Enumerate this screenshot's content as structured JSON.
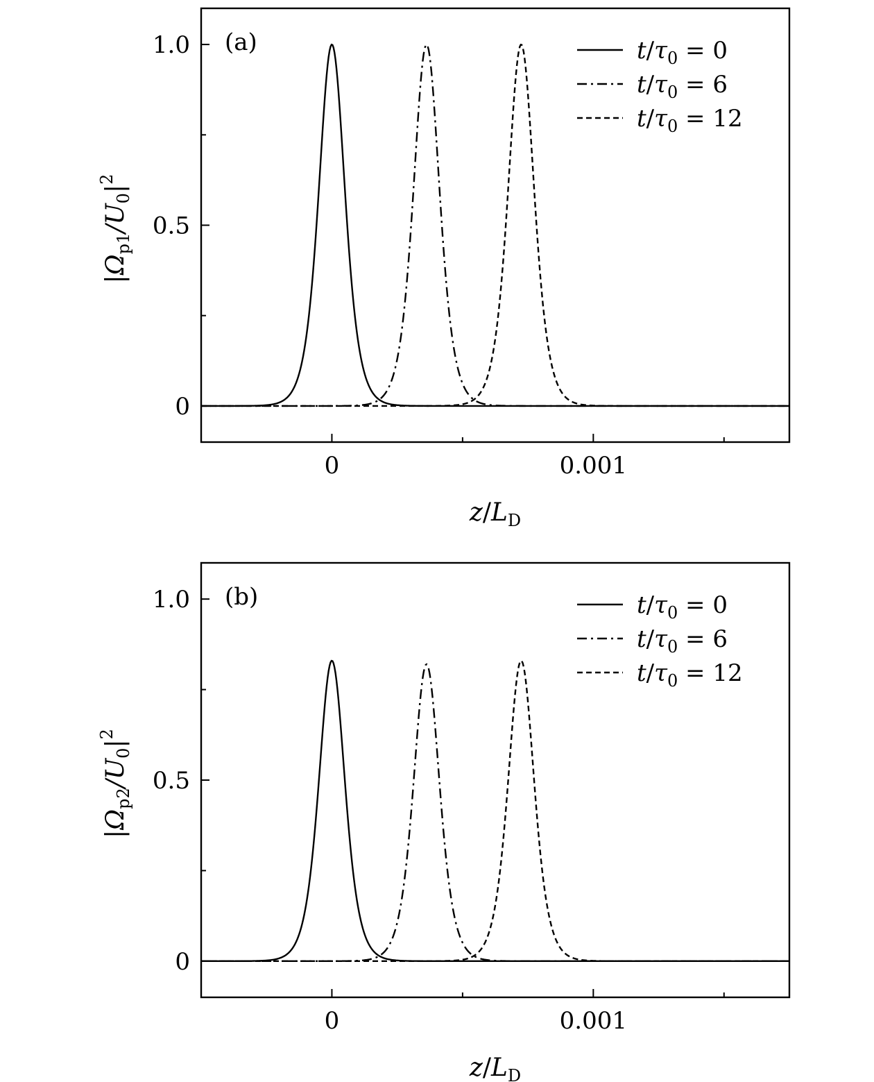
{
  "chart_data": [
    {
      "type": "line",
      "panel_label": "(a)",
      "xlabel": "z/L_D",
      "ylabel": "|Ω_p1/U_0|^2",
      "ylabel_main": "|Ω",
      "ylabel_sub": "p1",
      "ylabel_rest": "/U",
      "ylabel_sub2": "0",
      "ylabel_end": "|",
      "ylabel_sup": "2",
      "xlim": [
        -0.0005,
        0.00175
      ],
      "ylim": [
        -0.1,
        1.1
      ],
      "x_ticks": [
        0,
        0.001
      ],
      "x_tick_labels": [
        "0",
        "0.001"
      ],
      "x_minor_ticks": [
        -0.0005,
        0.0005,
        0.0015
      ],
      "y_ticks": [
        0,
        0.5,
        1.0
      ],
      "y_tick_labels": [
        "0",
        "0.5",
        "1.0"
      ],
      "y_minor_ticks": [
        0.25,
        0.75
      ],
      "grid": false,
      "legend_position": "top-right",
      "series": [
        {
          "name": "t/τ0 = 0",
          "legend_t": "t",
          "legend_tau": "τ",
          "legend_sub": "0",
          "legend_value": "0",
          "style": "solid",
          "center": 0.0,
          "peak": 1.0,
          "width": 6.67e-05
        },
        {
          "name": "t/τ0 = 6",
          "legend_t": "t",
          "legend_tau": "τ",
          "legend_sub": "0",
          "legend_value": "6",
          "style": "dashdot",
          "center": 0.000362,
          "peak": 1.0,
          "width": 6.67e-05
        },
        {
          "name": "t/τ0 = 12",
          "legend_t": "t",
          "legend_tau": "τ",
          "legend_sub": "0",
          "legend_value": "12",
          "style": "dashed",
          "center": 0.000724,
          "peak": 1.0,
          "width": 6.67e-05
        }
      ]
    },
    {
      "type": "line",
      "panel_label": "(b)",
      "xlabel": "z/L_D",
      "ylabel": "|Ω_p2/U_0|^2",
      "ylabel_main": "|Ω",
      "ylabel_sub": "p2",
      "ylabel_rest": "/U",
      "ylabel_sub2": "0",
      "ylabel_end": "|",
      "ylabel_sup": "2",
      "xlim": [
        -0.0005,
        0.00175
      ],
      "ylim": [
        -0.1,
        1.1
      ],
      "x_ticks": [
        0,
        0.001
      ],
      "x_tick_labels": [
        "0",
        "0.001"
      ],
      "x_minor_ticks": [
        -0.0005,
        0.0005,
        0.0015
      ],
      "y_ticks": [
        0,
        0.5,
        1.0
      ],
      "y_tick_labels": [
        "0",
        "0.5",
        "1.0"
      ],
      "y_minor_ticks": [
        0.25,
        0.75
      ],
      "grid": false,
      "legend_position": "top-right",
      "series": [
        {
          "name": "t/τ0 = 0",
          "legend_t": "t",
          "legend_tau": "τ",
          "legend_sub": "0",
          "legend_value": "0",
          "style": "solid",
          "center": 0.0,
          "peak": 0.83,
          "width": 6.67e-05
        },
        {
          "name": "t/τ0 = 6",
          "legend_t": "t",
          "legend_tau": "τ",
          "legend_sub": "0",
          "legend_value": "6",
          "style": "dashdot",
          "center": 0.000362,
          "peak": 0.82,
          "width": 6.67e-05
        },
        {
          "name": "t/τ0 = 12",
          "legend_t": "t",
          "legend_tau": "τ",
          "legend_sub": "0",
          "legend_value": "12",
          "style": "dashed",
          "center": 0.000724,
          "peak": 0.83,
          "width": 6.67e-05
        }
      ]
    }
  ]
}
